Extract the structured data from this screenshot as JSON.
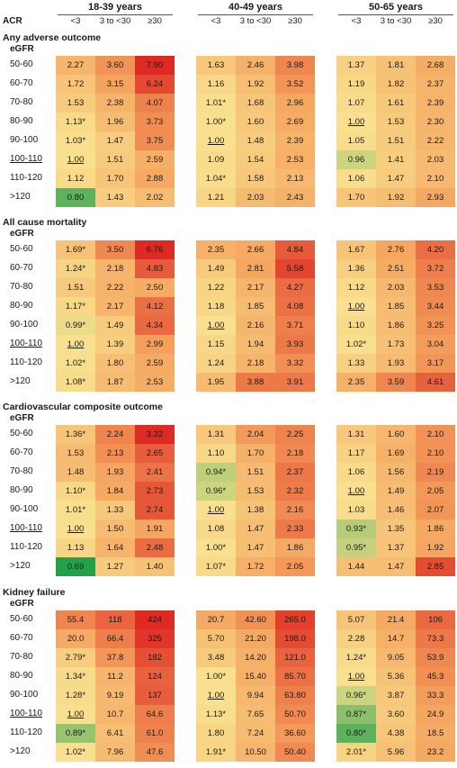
{
  "header": {
    "acr_label": "ACR",
    "age_groups": [
      "18-39 years",
      "40-49 years",
      "50-65 years"
    ],
    "acr_categories": [
      "<3",
      "3 to <30",
      "≥30"
    ]
  },
  "egfr_label": "eGFR",
  "colors": {
    "low": "#21a24a",
    "mid": "#f8e08e",
    "high": "#de2a22"
  },
  "chart_data": {
    "type": "heatmap",
    "row_labels": [
      "50-60",
      "60-70",
      "70-80",
      "80-90",
      "90-100",
      "100-110",
      "110-120",
      ">120"
    ],
    "reference_row": "100-110",
    "panels": [
      {
        "title": "Any adverse outcome",
        "groups": [
          {
            "age": "18-39 years",
            "cells": [
              [
                "2.27",
                "3.60",
                "7.90"
              ],
              [
                "1.72",
                "3.15",
                "6.24"
              ],
              [
                "1.53",
                "2.38",
                "4.07"
              ],
              [
                "1.13*",
                "1.96",
                "3.73"
              ],
              [
                "1.03*",
                "1.47",
                "3.75"
              ],
              [
                "1.00",
                "1.51",
                "2.59"
              ],
              [
                "1.12",
                "1.70",
                "2.88"
              ],
              [
                "0.80",
                "1.43",
                "2.02"
              ]
            ]
          },
          {
            "age": "40-49 years",
            "cells": [
              [
                "1.63",
                "2.46",
                "3.98"
              ],
              [
                "1.16",
                "1.92",
                "3.52"
              ],
              [
                "1.01*",
                "1.68",
                "2.96"
              ],
              [
                "1.00*",
                "1.60",
                "2.69"
              ],
              [
                "1.00",
                "1.48",
                "2.39"
              ],
              [
                "1.09",
                "1.54",
                "2.53"
              ],
              [
                "1.04*",
                "1.58",
                "2.13"
              ],
              [
                "1.21",
                "2.03",
                "2.43"
              ]
            ]
          },
          {
            "age": "50-65 years",
            "cells": [
              [
                "1.37",
                "1.81",
                "2.68"
              ],
              [
                "1.19",
                "1.82",
                "2.37"
              ],
              [
                "1.07",
                "1.61",
                "2.39"
              ],
              [
                "1.00",
                "1.53",
                "2.30"
              ],
              [
                "1.05",
                "1.51",
                "2.22"
              ],
              [
                "0.96",
                "1.41",
                "2.03"
              ],
              [
                "1.06",
                "1.47",
                "2.10"
              ],
              [
                "1.70",
                "1.92",
                "2.93"
              ]
            ]
          }
        ]
      },
      {
        "title": "All cause mortality",
        "groups": [
          {
            "age": "18-39 years",
            "cells": [
              [
                "1.69*",
                "3.50",
                "6.76"
              ],
              [
                "1.24*",
                "2.18",
                "4.83"
              ],
              [
                "1.51",
                "2.22",
                "2.50"
              ],
              [
                "1.17*",
                "2.17",
                "4.12"
              ],
              [
                "0.99*",
                "1.49",
                "4.34"
              ],
              [
                "1.00",
                "1.39",
                "2.99"
              ],
              [
                "1.02*",
                "1.80",
                "2.59"
              ],
              [
                "1.08*",
                "1.87",
                "2.53"
              ]
            ]
          },
          {
            "age": "40-49 years",
            "cells": [
              [
                "2.35",
                "2.66",
                "4.84"
              ],
              [
                "1.49",
                "2.81",
                "5.58"
              ],
              [
                "1.22",
                "2.17",
                "4.27"
              ],
              [
                "1.18",
                "1.85",
                "4.08"
              ],
              [
                "1.00",
                "2.16",
                "3.71"
              ],
              [
                "1.15",
                "1.94",
                "3.93"
              ],
              [
                "1.24",
                "2.18",
                "3.32"
              ],
              [
                "1.95",
                "3.88",
                "3.91"
              ]
            ]
          },
          {
            "age": "50-65 years",
            "cells": [
              [
                "1.67",
                "2.76",
                "4.20"
              ],
              [
                "1.36",
                "2.51",
                "3.72"
              ],
              [
                "1.12",
                "2.03",
                "3.53"
              ],
              [
                "1.00",
                "1.85",
                "3.44"
              ],
              [
                "1.10",
                "1.86",
                "3.25"
              ],
              [
                "1.02*",
                "1.73",
                "3.04"
              ],
              [
                "1.33",
                "1.93",
                "3.17"
              ],
              [
                "2.35",
                "3.59",
                "4.61"
              ]
            ]
          }
        ]
      },
      {
        "title": "Cardiovascular composite outcome",
        "groups": [
          {
            "age": "18-39 years",
            "cells": [
              [
                "1.36*",
                "2.24",
                "3.32"
              ],
              [
                "1.53",
                "2.13",
                "2.65"
              ],
              [
                "1.48",
                "1.93",
                "2.41"
              ],
              [
                "1.10*",
                "1.84",
                "2.73"
              ],
              [
                "1.01*",
                "1.33",
                "2.74"
              ],
              [
                "1.00",
                "1.50",
                "1.91"
              ],
              [
                "1.13",
                "1.64",
                "2.48"
              ],
              [
                "0.69",
                "1.27",
                "1.40"
              ]
            ]
          },
          {
            "age": "40-49 years",
            "cells": [
              [
                "1.31",
                "2.04",
                "2.25"
              ],
              [
                "1.10",
                "1.70",
                "2.18"
              ],
              [
                "0.94*",
                "1.51",
                "2.37"
              ],
              [
                "0.96*",
                "1.53",
                "2.32"
              ],
              [
                "1.00",
                "1.38",
                "2.16"
              ],
              [
                "1.08",
                "1.47",
                "2.33"
              ],
              [
                "1.00*",
                "1.47",
                "1.86"
              ],
              [
                "1.07*",
                "1.72",
                "2.05"
              ]
            ]
          },
          {
            "age": "50-65 years",
            "cells": [
              [
                "1.31",
                "1.60",
                "2.10"
              ],
              [
                "1.17",
                "1.69",
                "2.10"
              ],
              [
                "1.06",
                "1.56",
                "2.19"
              ],
              [
                "1.00",
                "1.49",
                "2.05"
              ],
              [
                "1.03",
                "1.46",
                "2.07"
              ],
              [
                "0.93*",
                "1.35",
                "1.86"
              ],
              [
                "0.95*",
                "1.37",
                "1.92"
              ],
              [
                "1.44",
                "1.47",
                "2.85"
              ]
            ]
          }
        ]
      },
      {
        "title": "Kidney failure",
        "groups": [
          {
            "age": "18-39 years",
            "cells": [
              [
                "55.4",
                "118",
                "424"
              ],
              [
                "20.0",
                "66.4",
                "325"
              ],
              [
                "2.79*",
                "37.8",
                "182"
              ],
              [
                "1.34*",
                "11.2",
                "124"
              ],
              [
                "1.28*",
                "9.19",
                "137"
              ],
              [
                "1.00",
                "10.7",
                "64.6"
              ],
              [
                "0.89*",
                "6.41",
                "61.0"
              ],
              [
                "1.02*",
                "7.96",
                "47.6"
              ]
            ]
          },
          {
            "age": "40-49 years",
            "cells": [
              [
                "20.7",
                "42.60",
                "265.0"
              ],
              [
                "5.70",
                "21.20",
                "198.0"
              ],
              [
                "3.48",
                "14.20",
                "121.0"
              ],
              [
                "1.00*",
                "15.40",
                "85.70"
              ],
              [
                "1.00",
                "9.94",
                "63.80"
              ],
              [
                "1.13*",
                "7.65",
                "50.70"
              ],
              [
                "1.80",
                "7.24",
                "36.60"
              ],
              [
                "1.91*",
                "10.50",
                "50.40"
              ]
            ]
          },
          {
            "age": "50-65 years",
            "cells": [
              [
                "5.07",
                "21.4",
                "106"
              ],
              [
                "2.28",
                "14.7",
                "73.3"
              ],
              [
                "1.24*",
                "9.05",
                "53.9"
              ],
              [
                "1.00",
                "5.36",
                "45.3"
              ],
              [
                "0.96*",
                "3.87",
                "33.3"
              ],
              [
                "0.87*",
                "3.60",
                "24.9"
              ],
              [
                "0.80*",
                "4.38",
                "18.5"
              ],
              [
                "2.01*",
                "5.96",
                "23.2"
              ]
            ]
          }
        ]
      }
    ]
  }
}
